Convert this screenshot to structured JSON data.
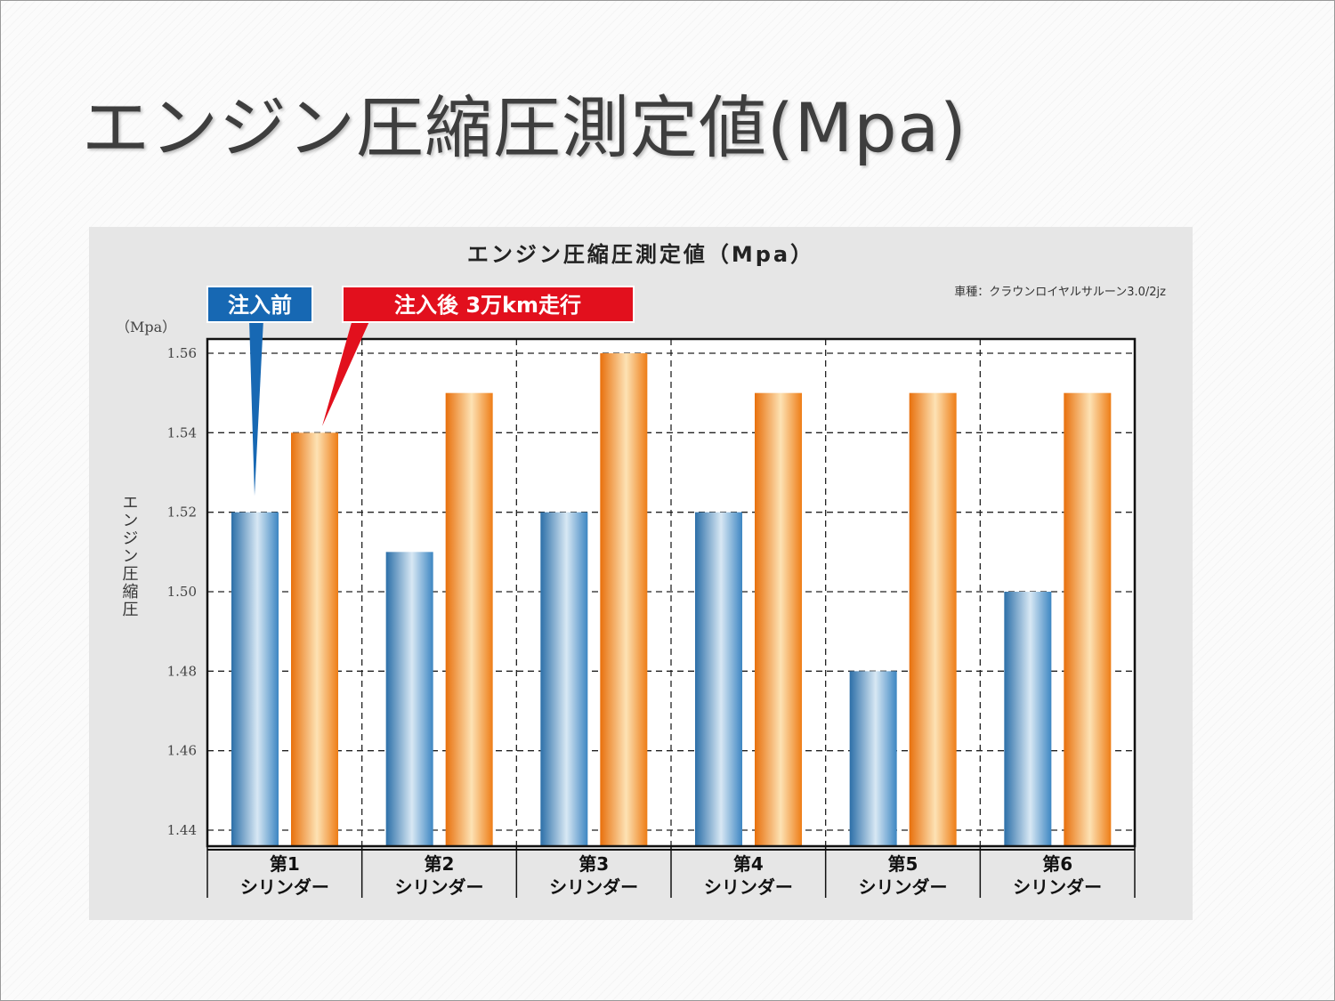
{
  "slide": {
    "title": "エンジン圧縮圧測定値(Mpa)"
  },
  "chart_data": {
    "type": "bar",
    "title": "エンジン圧縮圧測定値（Mpa）",
    "subtitle": "車種：クラウンロイヤルサルーン3.0/2jz",
    "unit_label": "（Mpa）",
    "ylabel": "エンジン圧縮圧",
    "ylim": [
      1.44,
      1.56
    ],
    "yticks": [
      "1.44",
      "1.46",
      "1.48",
      "1.50",
      "1.52",
      "1.54",
      "1.56"
    ],
    "grid": true,
    "categories": [
      {
        "line1": "第1",
        "line2": "シリンダー"
      },
      {
        "line1": "第2",
        "line2": "シリンダー"
      },
      {
        "line1": "第3",
        "line2": "シリンダー"
      },
      {
        "line1": "第4",
        "line2": "シリンダー"
      },
      {
        "line1": "第5",
        "line2": "シリンダー"
      },
      {
        "line1": "第6",
        "line2": "シリンダー"
      }
    ],
    "series": [
      {
        "name": "注入前",
        "color": "#3f86c0",
        "values": [
          1.52,
          1.51,
          1.52,
          1.52,
          1.48,
          1.5
        ]
      },
      {
        "name": "注入後 3万km走行",
        "color": "#ef7d14",
        "values": [
          1.54,
          1.55,
          1.56,
          1.55,
          1.55,
          1.55
        ]
      }
    ],
    "callout_colors": [
      "#1768b3",
      "#e2101d"
    ]
  }
}
